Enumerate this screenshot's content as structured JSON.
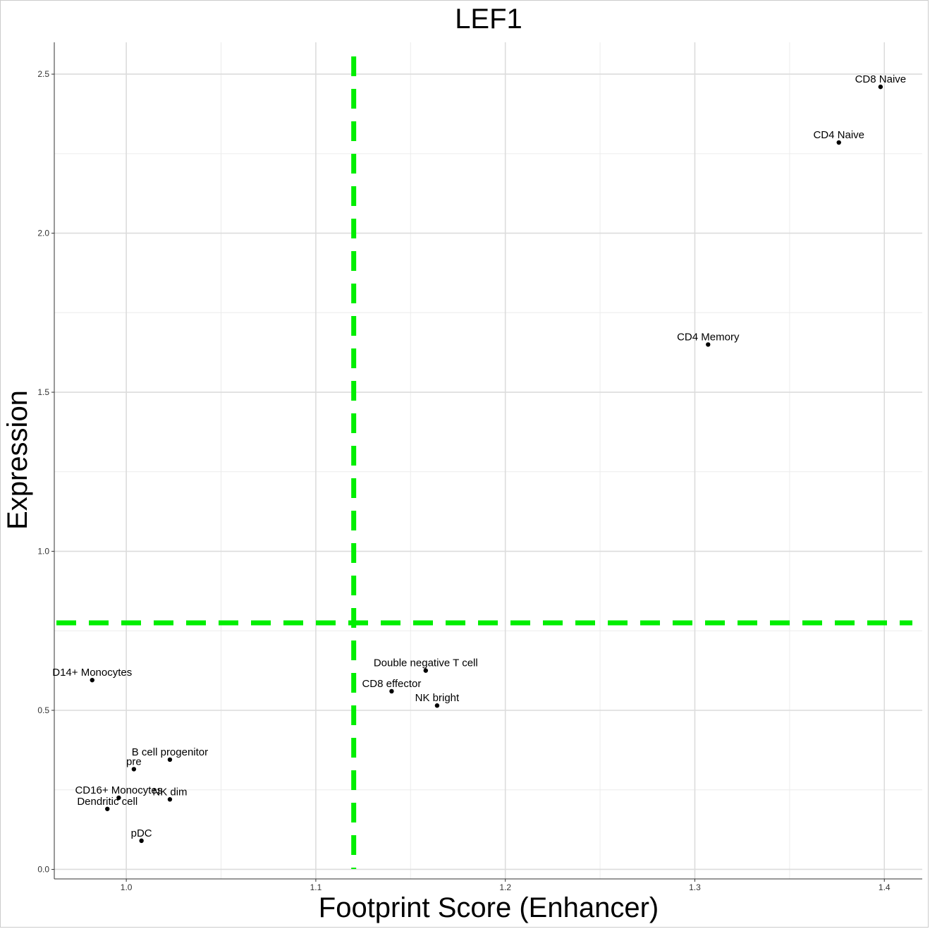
{
  "chart_data": {
    "type": "scatter",
    "title": "LEF1",
    "xlabel": "Footprint Score (Enhancer)",
    "ylabel": "Expression",
    "xlim": [
      0.962,
      1.42
    ],
    "ylim": [
      -0.03,
      2.6
    ],
    "x_ticks": [
      1.0,
      1.1,
      1.2,
      1.3,
      1.4
    ],
    "x_tick_labels": [
      "1.0",
      "1.1",
      "1.2",
      "1.3",
      "1.4"
    ],
    "y_ticks": [
      0.0,
      0.5,
      1.0,
      1.5,
      2.0,
      2.5
    ],
    "y_tick_labels": [
      "0.0",
      "0.5",
      "1.0",
      "1.5",
      "2.0",
      "2.5"
    ],
    "grid": true,
    "reference_lines": {
      "vertical_x": 1.12,
      "horizontal_y": 0.775,
      "color": "#00ee00",
      "style": "dashed"
    },
    "point_color": "#000000",
    "points": [
      {
        "label": "CD8 Naive",
        "x": 1.398,
        "y": 2.46
      },
      {
        "label": "CD4 Naive",
        "x": 1.376,
        "y": 2.285
      },
      {
        "label": "CD4 Memory",
        "x": 1.307,
        "y": 1.65
      },
      {
        "label": "Double negative T cell",
        "x": 1.158,
        "y": 0.625
      },
      {
        "label": "CD8 effector",
        "x": 1.14,
        "y": 0.56
      },
      {
        "label": "NK bright",
        "x": 1.164,
        "y": 0.515
      },
      {
        "label": "D14+ Monocytes",
        "x": 0.982,
        "y": 0.595
      },
      {
        "label": "B cell progenitor",
        "x": 1.023,
        "y": 0.345
      },
      {
        "label": "pre",
        "x": 1.004,
        "y": 0.315
      },
      {
        "label": "CD16+ Monocytes",
        "x": 0.996,
        "y": 0.225
      },
      {
        "label": "NK dim",
        "x": 1.023,
        "y": 0.22
      },
      {
        "label": "Dendritic cell",
        "x": 0.99,
        "y": 0.19
      },
      {
        "label": "pDC",
        "x": 1.008,
        "y": 0.09
      }
    ]
  }
}
